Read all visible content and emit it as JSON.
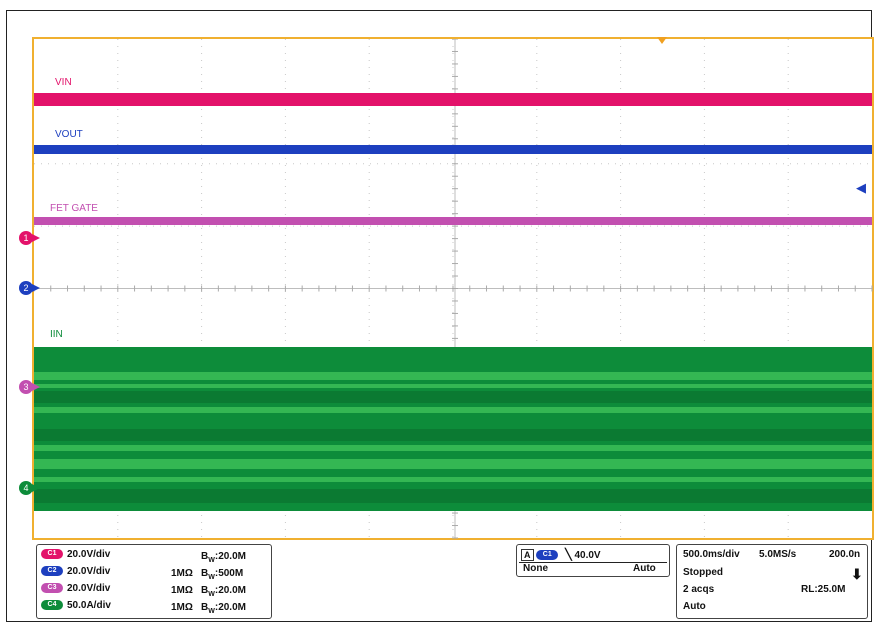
{
  "colors": {
    "ch1": "#e3126a",
    "ch2": "#1d3fbf",
    "ch3": "#c24fb0",
    "ch4": "#0d8c3a",
    "trigger": "#f0b030"
  },
  "waveforms": {
    "vin_label": "VIN",
    "vout_label": "VOUT",
    "fet_gate_label": "FET GATE",
    "iin_label": "IIN"
  },
  "ground_markers": {
    "ch1": "1",
    "ch2": "2",
    "ch3": "3",
    "ch4": "4"
  },
  "channels": [
    {
      "chip": "C1",
      "scale": "20.0V/div",
      "impedance": "",
      "bw": "20.0M"
    },
    {
      "chip": "C2",
      "scale": "20.0V/div",
      "impedance": "1MΩ",
      "bw": "500M"
    },
    {
      "chip": "C3",
      "scale": "20.0V/div",
      "impedance": "1MΩ",
      "bw": "20.0M"
    },
    {
      "chip": "C4",
      "scale": "50.0A/div",
      "impedance": "1MΩ",
      "bw": "20.0M"
    }
  ],
  "trigger": {
    "source": "A",
    "chip": "C1",
    "level": "40.0V",
    "coupling": "None",
    "mode": "Auto"
  },
  "timebase": {
    "time_div": "500.0ms/div",
    "sample_rate": "5.0MS/s",
    "resolution": "200.0n",
    "state": "Stopped",
    "acqs": "2 acqs",
    "record_length": "RL:25.0M",
    "acq_mode": "Auto"
  },
  "bw_prefix": "B",
  "bw_subscript": "W"
}
